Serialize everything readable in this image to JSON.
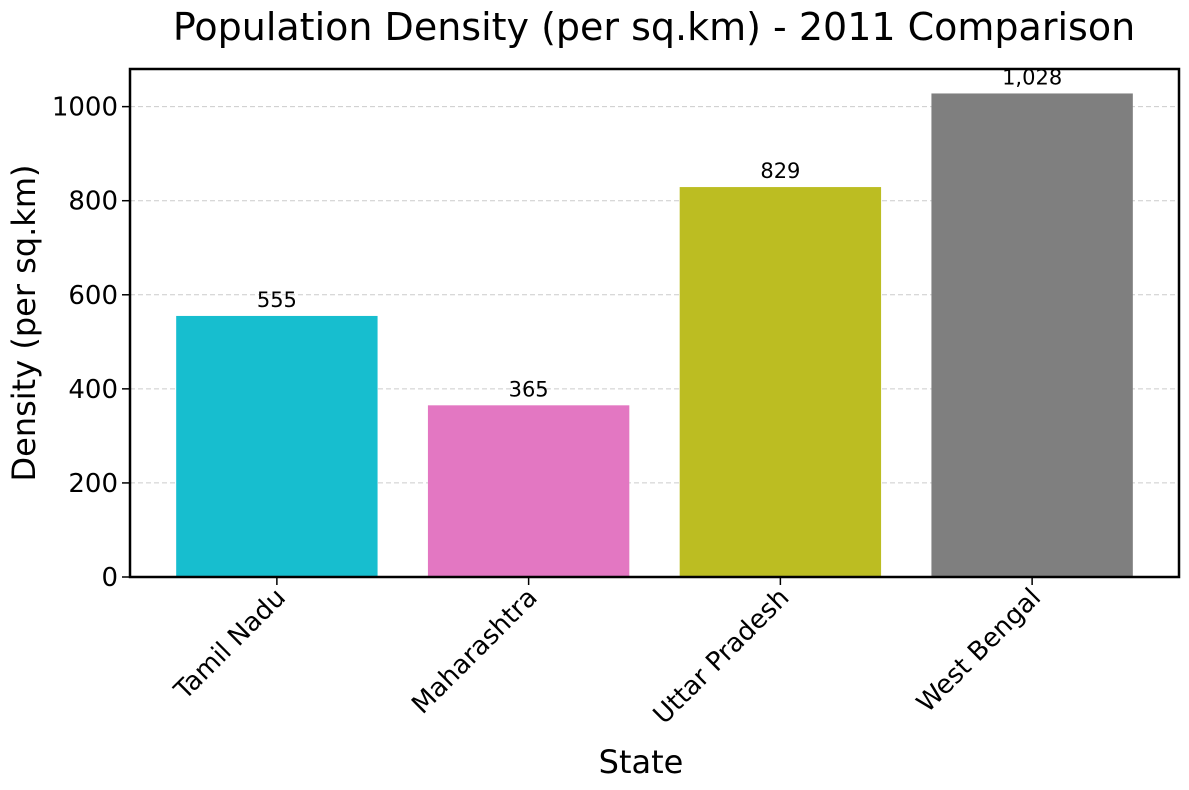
{
  "chart_data": {
    "type": "bar",
    "title": "Population Density (per sq.km) - 2011 Comparison",
    "xlabel": "State",
    "ylabel": "Density (per sq.km)",
    "categories": [
      "Tamil Nadu",
      "Maharashtra",
      "Uttar Pradesh",
      "West Bengal"
    ],
    "values": [
      555,
      365,
      829,
      1028
    ],
    "value_labels": [
      "555",
      "365",
      "829",
      "1,028"
    ],
    "colors": [
      "#17becf",
      "#e377c2",
      "#bcbd22",
      "#7f7f7f"
    ],
    "ylim": [
      0,
      1080
    ],
    "yticks": [
      0,
      200,
      400,
      600,
      800,
      1000
    ],
    "ytick_labels": [
      "0",
      "200",
      "400",
      "600",
      "800",
      "1000"
    ],
    "grid": "y-dashed",
    "legend": "none"
  }
}
